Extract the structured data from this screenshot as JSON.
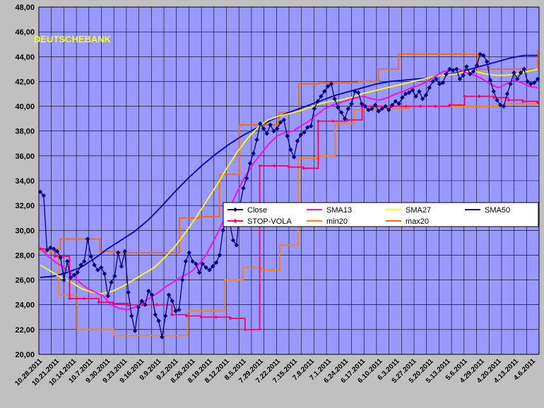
{
  "chart_data": {
    "type": "line",
    "title": "DEUTSCHEBANK",
    "ylim": [
      20,
      48
    ],
    "yticks": [
      "20,00",
      "22,00",
      "24,00",
      "26,00",
      "28,00",
      "30,00",
      "32,00",
      "34,00",
      "36,00",
      "38,00",
      "40,00",
      "42,00",
      "44,00",
      "46,00",
      "48,00"
    ],
    "xtick_labels": [
      "10.28.2011",
      "10.21.2011",
      "10.14.2011",
      "10.7.2011",
      "9.30.2011",
      "9.23.2011",
      "9.16.2011",
      "9.9.2011",
      "9.2.2011",
      "8.26.2011",
      "8.19.2011",
      "8.12.2011",
      "8.5.2011",
      "7.29.2011",
      "7.22.2011",
      "7.15.2011",
      "7.8.2011",
      "7.1.2011",
      "6.24.2011",
      "6.17.2011",
      "6.10.2011",
      "6.3.2011",
      "5.27.2011",
      "5.20.2011",
      "5.13.2011",
      "5.6.2011",
      "4.29.2011",
      "4.20.2011",
      "4.13.2011",
      "4.6.2011"
    ],
    "grid": true,
    "legend_position": "center-right",
    "colors": {
      "plot_background": "#9999ff",
      "grid": "#000000",
      "Close": "#000080",
      "SMA13": "#ff00ff",
      "SMA27": "#ffff00",
      "SMA50": "#0000cc",
      "STOP-VOLA": "#ff0066",
      "min20": "#ff8000",
      "max20": "#ff6600"
    },
    "series": [
      {
        "name": "Close",
        "values": [
          33.1,
          32.8,
          28.4,
          28.6,
          28.5,
          28.3,
          27.8,
          26.0,
          27.5,
          26.2,
          26.4,
          26.6,
          27.2,
          27.5,
          29.3,
          27.9,
          27.2,
          26.8,
          27.0,
          26.5,
          24.7,
          25.8,
          26.3,
          28.2,
          27.1,
          28.3,
          25.0,
          23.1,
          21.9,
          23.8,
          24.3,
          24.0,
          25.1,
          24.8,
          23.2,
          22.7,
          21.4,
          23.1,
          24.8,
          24.3,
          23.5,
          23.6,
          26.0,
          27.5,
          28.2,
          27.5,
          27.3,
          26.6,
          27.3,
          27.0,
          26.8,
          27.1,
          27.4,
          28.0,
          30.0,
          30.8,
          30.6,
          29.2,
          28.8,
          32.0,
          33.4,
          34.2,
          35.4,
          36.2,
          37.3,
          38.6,
          38.2,
          37.8,
          38.5,
          38.0,
          38.2,
          38.7,
          38.9,
          37.6,
          36.5,
          35.9,
          37.2,
          37.7,
          37.9,
          38.3,
          38.4,
          39.8,
          40.4,
          40.8,
          41.2,
          41.6,
          41.8,
          40.6,
          39.9,
          39.5,
          39.0,
          39.8,
          40.2,
          41.2,
          41.1,
          40.2,
          40.0,
          39.7,
          39.8,
          40.1,
          39.6,
          39.8,
          40.0,
          39.7,
          40.1,
          40.4,
          40.2,
          40.7,
          41.0,
          41.1,
          41.3,
          40.8,
          41.2,
          40.6,
          40.9,
          41.5,
          42.0,
          42.2,
          41.8,
          41.9,
          42.6,
          43.0,
          42.9,
          43.0,
          42.2,
          42.5,
          43.2,
          42.6,
          42.8,
          43.3,
          44.2,
          44.1,
          43.6,
          42.1,
          41.2,
          40.5,
          40.1,
          40.0,
          41.0,
          41.8,
          42.7,
          42.2,
          42.7,
          43.0,
          42.0,
          41.8,
          41.9,
          42.2
        ]
      },
      {
        "name": "SMA13",
        "values": [
          28.6,
          27.9,
          27.4,
          27.0,
          26.5,
          25.8,
          25.3,
          25.0,
          24.7,
          24.0,
          23.7,
          23.6,
          23.8,
          24.2,
          24.6,
          25.0,
          25.5,
          25.9,
          26.3,
          26.6,
          27.2,
          28.0,
          29.2,
          30.5,
          31.8,
          33.2,
          34.4,
          35.4,
          36.2,
          37.0,
          37.6,
          37.9,
          38.0,
          38.4,
          38.8,
          39.3,
          39.8,
          40.1,
          40.3,
          40.5,
          40.7,
          40.8,
          40.6,
          40.5,
          40.7,
          41.0,
          41.2,
          41.5,
          41.7,
          42.0,
          42.4,
          42.8,
          42.9,
          43.0,
          42.7,
          42.5,
          42.2,
          41.8,
          41.5,
          41.8,
          42.1,
          41.9,
          41.6,
          41.5
        ]
      },
      {
        "name": "SMA27",
        "values": [
          27.2,
          26.7,
          26.2,
          25.8,
          25.3,
          25.0,
          24.9,
          25.1,
          25.5,
          26.0,
          26.5,
          27.0,
          27.8,
          28.7,
          29.8,
          31.0,
          32.3,
          33.6,
          35.0,
          36.3,
          37.4,
          38.3,
          38.9,
          39.2,
          39.4,
          39.6,
          39.9,
          40.2,
          40.4,
          40.5,
          40.7,
          41.0,
          41.2,
          41.4,
          41.6,
          41.8,
          42.0,
          42.2,
          42.4,
          42.5,
          42.6,
          42.8,
          42.8,
          42.6,
          42.5,
          42.5,
          42.6,
          42.8,
          43.0
        ]
      },
      {
        "name": "SMA50",
        "values": [
          26.2,
          26.3,
          26.6,
          27.0,
          27.7,
          28.5,
          29.2,
          29.9,
          30.8,
          31.9,
          33.1,
          34.2,
          35.2,
          36.1,
          36.9,
          37.6,
          38.2,
          38.8,
          39.3,
          39.7,
          40.1,
          40.5,
          40.9,
          41.2,
          41.5,
          41.8,
          42.0,
          42.1,
          42.2,
          42.3,
          42.5,
          42.7,
          43.0,
          43.3,
          43.6,
          43.9,
          44.1,
          44.1
        ]
      },
      {
        "name": "STOP-VOLA",
        "values": [
          28.5,
          27.9,
          24.5,
          24.5,
          24.2,
          24.1,
          24.0,
          24.0,
          24.0,
          23.2,
          23.1,
          23.0,
          23.0,
          22.9,
          22.0,
          35.2,
          35.2,
          35.1,
          35.0,
          38.8,
          38.8,
          38.9,
          40.0,
          40.0,
          40.0,
          40.0,
          40.0,
          40.0,
          40.1,
          40.8,
          40.8,
          40.7,
          40.5,
          40.4,
          40.3
        ]
      },
      {
        "name": "min20",
        "values": [
          28.3,
          24.8,
          22.0,
          22.0,
          21.5,
          21.5,
          21.5,
          21.5,
          23.5,
          23.5,
          26.0,
          27.0,
          26.8,
          28.8,
          35.8,
          36.0,
          38.6,
          39.7,
          39.8,
          39.8,
          40.0,
          40.0,
          40.0,
          40.0,
          40.0,
          40.2,
          40.2,
          40.2
        ]
      },
      {
        "name": "max20",
        "values": [
          28.5,
          29.3,
          29.3,
          28.3,
          28.2,
          28.2,
          28.2,
          31.0,
          31.1,
          34.5,
          38.5,
          38.5,
          39.5,
          41.8,
          41.9,
          41.9,
          42.0,
          43.0,
          44.2,
          44.2,
          44.2,
          44.2,
          43.0,
          43.0,
          43.0,
          44.5
        ]
      }
    ]
  }
}
